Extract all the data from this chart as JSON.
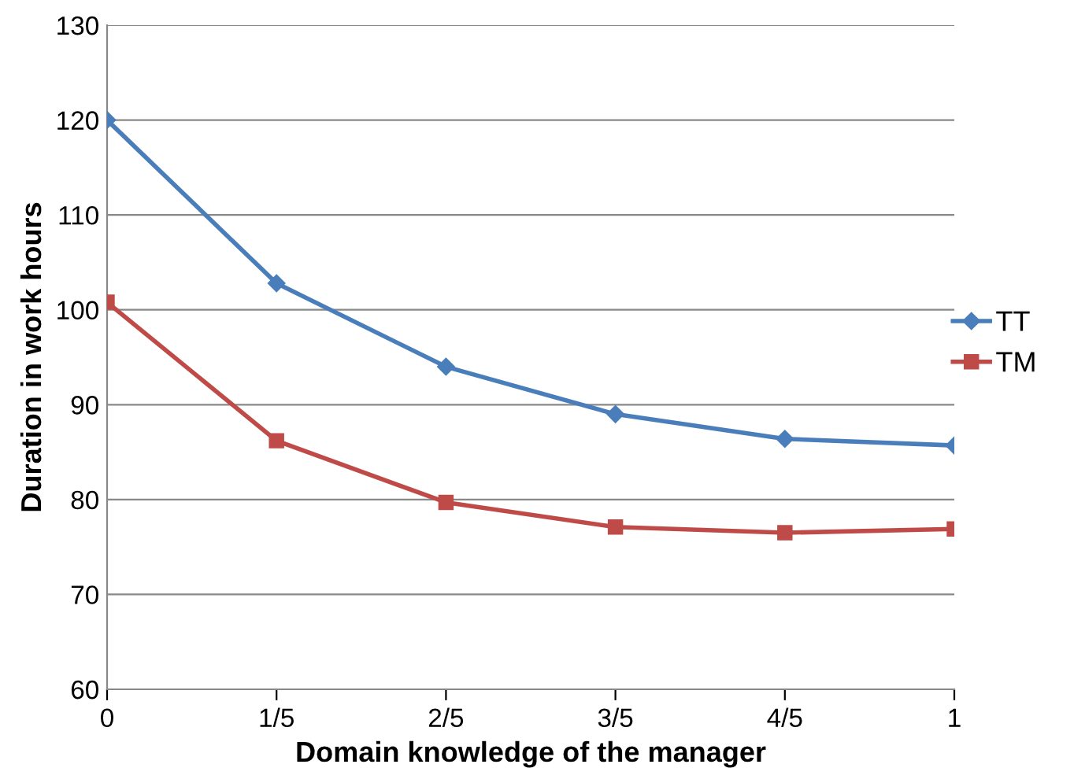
{
  "chart_data": {
    "type": "line",
    "xlabel": "Domain knowledge of the manager",
    "ylabel": "Duration in work hours",
    "categories": [
      "0",
      "1/5",
      "2/5",
      "3/5",
      "4/5",
      "1"
    ],
    "series": [
      {
        "name": "TT",
        "color": "#4a7ebb",
        "marker": "diamond",
        "values": [
          120,
          102.8,
          94,
          89,
          86.4,
          85.7
        ]
      },
      {
        "name": "TM",
        "color": "#be4b48",
        "marker": "square",
        "values": [
          100.8,
          86.2,
          79.7,
          77.1,
          76.5,
          76.9
        ]
      }
    ],
    "ylim": [
      60,
      130
    ],
    "yticks": [
      60,
      70,
      80,
      90,
      100,
      110,
      120,
      130
    ],
    "grid": "y",
    "legend": "right",
    "line_style": "solid"
  }
}
